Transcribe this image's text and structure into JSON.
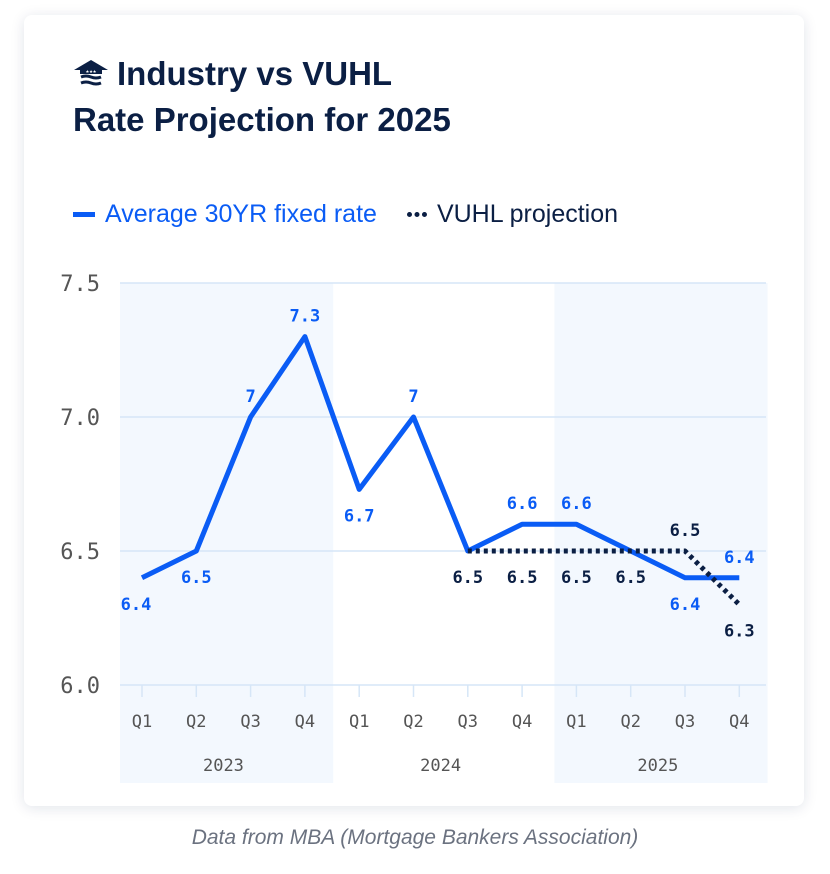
{
  "title": {
    "line1": "Industry vs VUHL",
    "line2": "Rate Projection for 2025",
    "logo": "house-flag-logo"
  },
  "footer": "Data from MBA (Mortgage Bankers Association)",
  "colors": {
    "actual": "#0a5cf5",
    "projection": "#0b1f44",
    "band": "#f3f8fe",
    "grid": "#d6e6f7",
    "title": "#0b1f44"
  },
  "chart_data": {
    "type": "line",
    "ylim": [
      6.0,
      7.5
    ],
    "yticks": [
      "6.0",
      "6.5",
      "7.0",
      "7.5"
    ],
    "grid": true,
    "legend_position": "top-left",
    "categories": [
      "Q1",
      "Q2",
      "Q3",
      "Q4",
      "Q1",
      "Q2",
      "Q3",
      "Q4",
      "Q1",
      "Q2",
      "Q3",
      "Q4"
    ],
    "years": [
      "2023",
      "2024",
      "2025"
    ],
    "series": [
      {
        "name": "Average 30YR fixed rate",
        "style": "solid",
        "values": [
          6.4,
          6.5,
          7.0,
          7.3,
          6.73,
          7.0,
          6.5,
          6.6,
          6.6,
          6.5,
          6.4,
          6.4
        ],
        "labels": [
          "6.4",
          "6.5",
          "7",
          "7.3",
          "6.7",
          "7",
          "",
          "6.6",
          "6.6",
          "",
          "6.4",
          "6.4"
        ]
      },
      {
        "name": "VUHL projection",
        "style": "dotted",
        "values": [
          null,
          null,
          null,
          null,
          null,
          null,
          6.5,
          6.5,
          6.5,
          6.5,
          6.5,
          6.3
        ],
        "labels": [
          "",
          "",
          "",
          "",
          "",
          "",
          "6.5",
          "6.5",
          "6.5",
          "6.5",
          "6.5",
          "6.3"
        ]
      }
    ]
  }
}
